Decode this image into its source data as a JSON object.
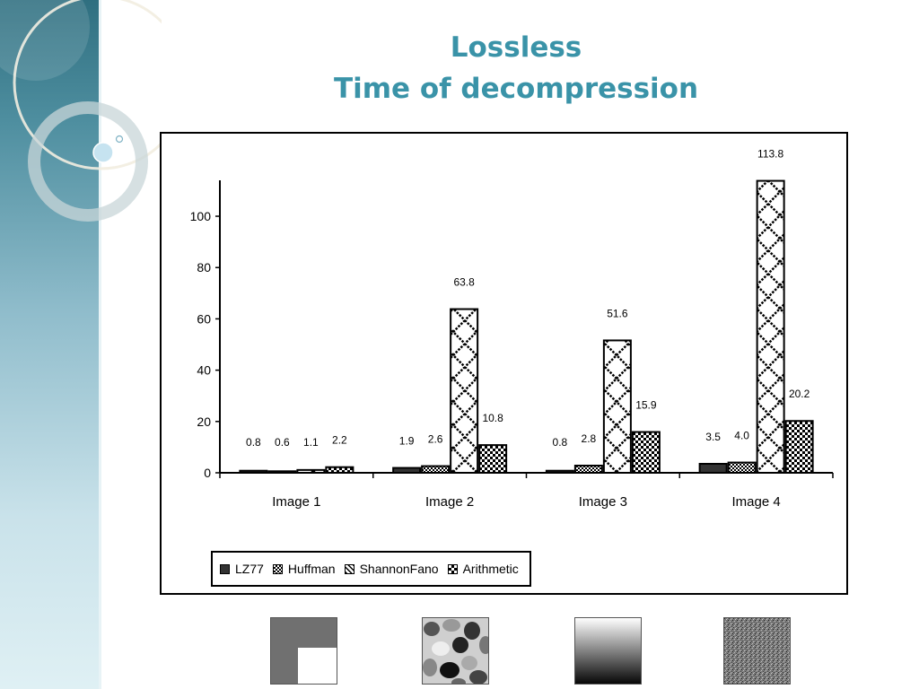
{
  "slide": {
    "title_line1": "Lossless",
    "title_line2": "Time of decompression"
  },
  "chart_data": {
    "type": "bar",
    "categories": [
      "Image 1",
      "Image 2",
      "Image 3",
      "Image 4"
    ],
    "series": [
      {
        "name": "LZ77",
        "values": [
          0.8,
          1.9,
          0.8,
          3.5
        ],
        "labels": [
          "0.8",
          "1.9",
          "0.8",
          "3.5"
        ],
        "color": "#333333",
        "pattern": "solid"
      },
      {
        "name": "Huffman",
        "values": [
          0.6,
          2.6,
          2.8,
          4.0
        ],
        "labels": [
          "0.6",
          "2.6",
          "2.8",
          "4.0"
        ],
        "color": "#111111",
        "pattern": "dots"
      },
      {
        "name": "ShannonFano",
        "values": [
          1.1,
          63.8,
          51.6,
          113.8
        ],
        "labels": [
          "1.1",
          "63.8",
          "51.6",
          "113.8"
        ],
        "color": "#000000",
        "pattern": "diamond"
      },
      {
        "name": "Arithmetic",
        "values": [
          2.2,
          10.8,
          15.9,
          20.2
        ],
        "labels": [
          "2.2",
          "10.8",
          "15.9",
          "20.2"
        ],
        "color": "#000000",
        "pattern": "checker"
      }
    ],
    "yticks": [
      0,
      20,
      40,
      60,
      80,
      100
    ],
    "ylim": [
      0,
      114
    ],
    "grid": false,
    "legend_position": "bottom-left",
    "title": "",
    "xlabel": "",
    "ylabel": ""
  },
  "thumbnails": [
    {
      "name": "image-1-thumbnail",
      "description_icon": "gray-square-with-white-corner"
    },
    {
      "name": "image-2-thumbnail",
      "description_icon": "gray-blobs-texture"
    },
    {
      "name": "image-3-thumbnail",
      "description_icon": "white-to-black-gradient"
    },
    {
      "name": "image-4-thumbnail",
      "description_icon": "gray-noise-texture"
    }
  ]
}
